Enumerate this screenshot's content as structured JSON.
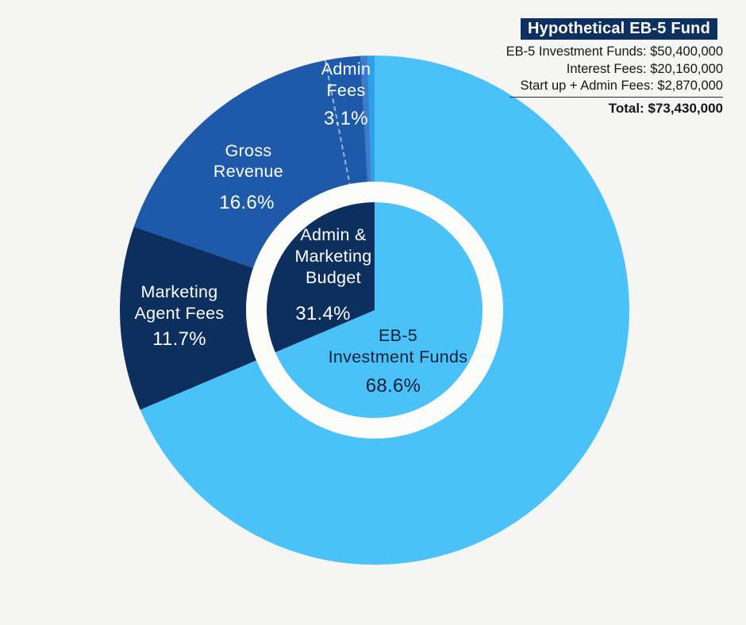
{
  "background": "#F5F5F3",
  "panel": {
    "title": "Hypothetical EB-5 Fund",
    "title_bg": "#0D3061",
    "lines": [
      {
        "label": "EB-5 Investment Funds:",
        "value": "$50,400,000"
      },
      {
        "label": "Interest Fees:",
        "value": "$20,160,000"
      },
      {
        "label": "Start up + Admin Fees:",
        "value": "$2,870,000"
      }
    ],
    "total_label": "Total:",
    "total_value": "$73,430,000"
  },
  "chart_data": {
    "type": "pie",
    "title": "Hypothetical EB-5 Fund",
    "direction": "clockwise",
    "start_angle_deg": 0,
    "ring_color": "#FBFBFA",
    "outer": {
      "segments": [
        {
          "label": "EB-5 Investment Funds",
          "pct": 68.6,
          "color": "#4AC2F8"
        },
        {
          "label": "Marketing Agent Fees",
          "pct": 11.7,
          "color": "#0D2F5E"
        },
        {
          "label": "Gross Revenue",
          "pct": 16.6,
          "color": "#1E5AA9"
        },
        {
          "label": "Admin Fees",
          "pct": 3.1,
          "color": "#1E5AA9",
          "sub_slices": [
            {
              "pct": 2.2,
              "color": "#1E5AA9"
            },
            {
              "pct": 0.45,
              "color": "#3E7CCA"
            },
            {
              "pct": 0.45,
              "color": "#2E9FE8"
            }
          ]
        }
      ],
      "divider": {
        "after_label": "Gross Revenue",
        "style": "dashed-white"
      }
    },
    "inner": {
      "segments": [
        {
          "label": "EB-5 Investment Funds",
          "pct": 68.6,
          "color": "#4AC2F8"
        },
        {
          "label": "Admin & Marketing Budget",
          "pct": 31.4,
          "color": "#0D2F5E"
        }
      ]
    }
  },
  "labels": {
    "admin": {
      "lines": [
        "Admin",
        "Fees"
      ],
      "pct": "3.1%"
    },
    "gross": {
      "lines": [
        "Gross",
        "Revenue"
      ],
      "pct": "16.6%"
    },
    "marketing": {
      "lines": [
        "Marketing",
        "Agent Fees"
      ],
      "pct": "11.7%"
    },
    "inner_budget": {
      "lines": [
        "Admin &",
        "Marketing",
        "Budget"
      ],
      "pct": "31.4%"
    },
    "eb5": {
      "lines": [
        "EB-5",
        "Investment Funds"
      ],
      "pct": "68.6%"
    }
  }
}
